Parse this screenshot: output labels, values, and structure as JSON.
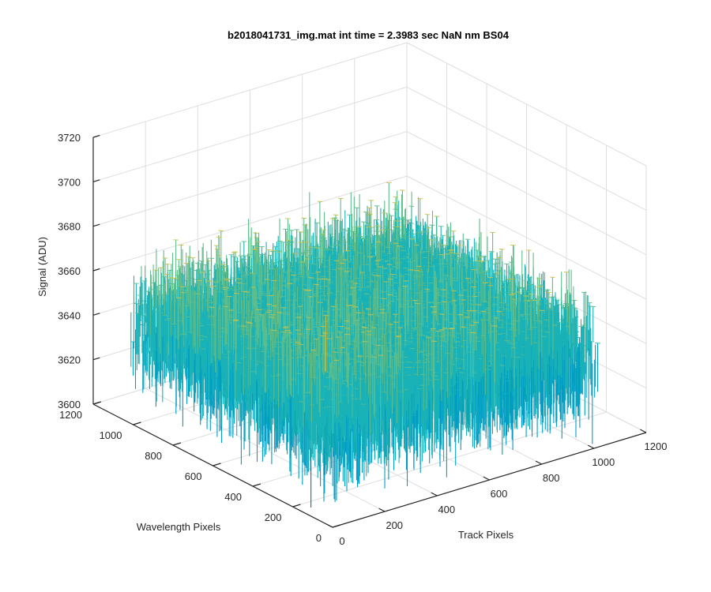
{
  "chart_data": {
    "type": "surface",
    "title": "b2018041731_img.mat int time = 2.3983 sec  NaN nm BS04",
    "xlabel": "Track Pixels",
    "ylabel": "Wavelength Pixels",
    "zlabel": "Signal (ADU)",
    "x_ticks": [
      "0",
      "200",
      "400",
      "600",
      "800",
      "1000",
      "1200"
    ],
    "y_ticks": [
      "0",
      "200",
      "400",
      "600",
      "800",
      "1000",
      "1200"
    ],
    "z_ticks": [
      "3600",
      "3620",
      "3640",
      "3660",
      "3680",
      "3700",
      "3720"
    ],
    "xlim": [
      0,
      1200
    ],
    "ylim": [
      0,
      1200
    ],
    "zlim": [
      3600,
      3720
    ],
    "grid": true,
    "surface": {
      "x_extent": [
        0,
        1024
      ],
      "y_extent": [
        0,
        1024
      ],
      "mean_signal": 3645,
      "noise_range": [
        3610,
        3705
      ],
      "colormap": [
        "#0072bd",
        "#009dc4",
        "#19b2b7",
        "#5fbd8a",
        "#c9c14a"
      ]
    }
  }
}
